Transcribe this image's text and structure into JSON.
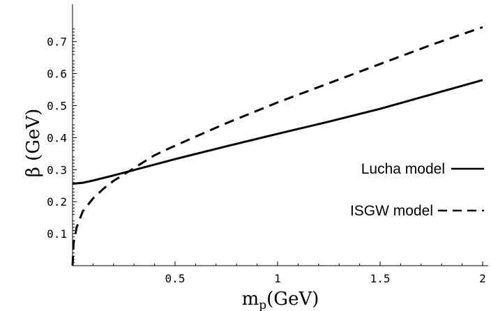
{
  "chart_data": {
    "type": "line",
    "xlabel_main": "m",
    "xlabel_sub": "p",
    "xlabel_unit": "(GeV)",
    "ylabel": "β (GeV)",
    "xlim": [
      0,
      2
    ],
    "ylim": [
      0,
      0.76
    ],
    "x_ticks": [
      0.5,
      1,
      1.5,
      2
    ],
    "x_tick_labels": [
      "0.5",
      "1",
      "1.5",
      "2"
    ],
    "y_ticks": [
      0.1,
      0.2,
      0.3,
      0.4,
      0.5,
      0.6,
      0.7
    ],
    "y_tick_labels": [
      "0.1",
      "0.2",
      "0.3",
      "0.4",
      "0.5",
      "0.6",
      "0.7"
    ],
    "grid": false,
    "legend_position": "right",
    "series": [
      {
        "name": "Lucha model",
        "style": "solid",
        "color": "#000000",
        "x": [
          0,
          0.05,
          0.1,
          0.2,
          0.3,
          0.5,
          0.75,
          1.0,
          1.25,
          1.5,
          1.75,
          2.0
        ],
        "y": [
          0.256,
          0.259,
          0.266,
          0.282,
          0.299,
          0.333,
          0.373,
          0.412,
          0.45,
          0.49,
          0.535,
          0.58
        ]
      },
      {
        "name": "ISGW model",
        "style": "dashed",
        "color": "#000000",
        "x": [
          0,
          0.005,
          0.02,
          0.05,
          0.1,
          0.15,
          0.2,
          0.25,
          0.3,
          0.4,
          0.5,
          0.75,
          1.0,
          1.25,
          1.5,
          1.75,
          2.0
        ],
        "y": [
          0.0,
          0.07,
          0.12,
          0.17,
          0.21,
          0.24,
          0.265,
          0.285,
          0.305,
          0.345,
          0.375,
          0.445,
          0.51,
          0.57,
          0.63,
          0.69,
          0.745
        ]
      }
    ]
  }
}
